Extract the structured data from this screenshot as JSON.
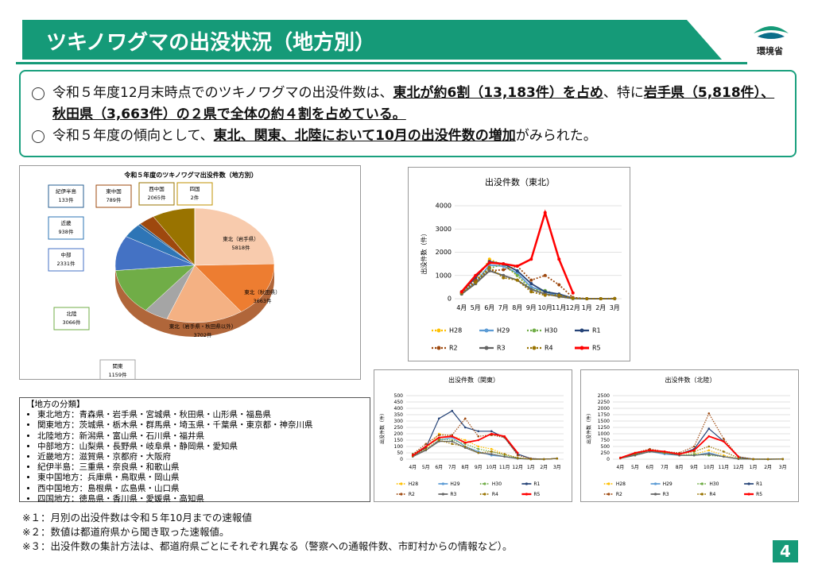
{
  "header": {
    "title": "ツキノワグマの出没状況（地方別）",
    "logo": "環境省"
  },
  "bullets": [
    {
      "segments": [
        {
          "text": "令和５年度12月末時点でのツキノワグマの出没件数は、",
          "bold": false
        },
        {
          "text": "東北が約6割（13,183件）を占め",
          "bold": true
        },
        {
          "text": "、特に",
          "bold": false
        },
        {
          "text": "岩手県（5,818件）、秋田県（3,663件）の２県で全体の約４割を占めている。",
          "bold": true
        }
      ]
    },
    {
      "segments": [
        {
          "text": "令和５年度の傾向として、",
          "bold": false
        },
        {
          "text": "東北、関東、北陸において10月の出没件数の増加",
          "bold": true
        },
        {
          "text": "がみられた。",
          "bold": false
        }
      ]
    }
  ],
  "chart_data": [
    {
      "type": "pie",
      "title": "令和５年度のツキノワグマ出没件数（地方別）",
      "categories": [
        "東北（岩手県）",
        "東北（秋田県）",
        "東北（岩手県・秋田県以外）",
        "関東",
        "北陸",
        "中部",
        "近畿",
        "紀伊半島",
        "東中国",
        "西中国",
        "四国"
      ],
      "values": [
        5818,
        3663,
        3702,
        1159,
        3066,
        2331,
        938,
        133,
        789,
        2065,
        2
      ],
      "value_labels": [
        "5818件",
        "3663件",
        "3702件",
        "1159件",
        "3066件",
        "2331件",
        "938件",
        "133件",
        "789件",
        "2065件",
        "2件"
      ],
      "colors": [
        "#f8cbad",
        "#ed7d31",
        "#f4b183",
        "#a5a5a5",
        "#70ad47",
        "#4472c4",
        "#2e75b6",
        "#255e91",
        "#9e480e",
        "#997300",
        "#bf9000"
      ]
    },
    {
      "type": "line",
      "title": "出没件数（東北）",
      "ylabel": "出没件数（件）",
      "legend": "bottom",
      "categories": [
        "4月",
        "5月",
        "6月",
        "7月",
        "8月",
        "9月",
        "10月",
        "11月",
        "12月",
        "1月",
        "2月",
        "3月"
      ],
      "ylim": [
        0,
        4000
      ],
      "yticks": [
        0,
        1000,
        2000,
        3000,
        4000
      ],
      "grid": true,
      "series": [
        {
          "name": "H28",
          "color": "#ffc000",
          "style": "dotted",
          "values": [
            250,
            750,
            1700,
            1450,
            1000,
            400,
            250,
            80,
            10,
            0,
            0,
            5
          ]
        },
        {
          "name": "H29",
          "color": "#5b9bd5",
          "style": "solid",
          "values": [
            250,
            700,
            1450,
            1400,
            1100,
            500,
            300,
            100,
            10,
            0,
            0,
            5
          ]
        },
        {
          "name": "H30",
          "color": "#70ad47",
          "style": "dotted",
          "values": [
            200,
            650,
            1300,
            1500,
            1000,
            400,
            350,
            150,
            10,
            0,
            0,
            5
          ]
        },
        {
          "name": "R1",
          "color": "#264478",
          "style": "solid",
          "values": [
            300,
            900,
            1600,
            1500,
            1200,
            650,
            300,
            200,
            20,
            0,
            0,
            5
          ]
        },
        {
          "name": "R2",
          "color": "#9e480e",
          "style": "dotted",
          "values": [
            250,
            800,
            1200,
            1250,
            1400,
            800,
            1000,
            600,
            50,
            0,
            0,
            10
          ]
        },
        {
          "name": "R3",
          "color": "#636363",
          "style": "solid",
          "values": [
            200,
            650,
            1200,
            1000,
            800,
            400,
            200,
            100,
            10,
            0,
            0,
            5
          ]
        },
        {
          "name": "R4",
          "color": "#997300",
          "style": "dotted",
          "values": [
            250,
            700,
            1350,
            900,
            800,
            300,
            150,
            150,
            20,
            0,
            0,
            5
          ]
        },
        {
          "name": "R5",
          "color": "#ff0000",
          "style": "solid",
          "values": [
            300,
            1000,
            1550,
            1500,
            1400,
            1700,
            3700,
            1700,
            250,
            null,
            null,
            null
          ]
        }
      ]
    },
    {
      "type": "line",
      "title": "出没件数（関東）",
      "ylabel": "出没件数（件）",
      "legend": "bottom",
      "categories": [
        "4月",
        "5月",
        "6月",
        "7月",
        "8月",
        "9月",
        "10月",
        "11月",
        "12月",
        "1月",
        "2月",
        "3月"
      ],
      "ylim": [
        0,
        500
      ],
      "yticks": [
        0,
        50,
        100,
        150,
        200,
        250,
        300,
        350,
        400,
        450,
        500
      ],
      "grid": true,
      "series": [
        {
          "name": "H28",
          "color": "#ffc000",
          "style": "dotted",
          "values": [
            30,
            80,
            200,
            180,
            150,
            100,
            80,
            40,
            10,
            0,
            0,
            5
          ]
        },
        {
          "name": "H29",
          "color": "#5b9bd5",
          "style": "solid",
          "values": [
            30,
            70,
            150,
            170,
            100,
            60,
            30,
            20,
            5,
            0,
            0,
            5
          ]
        },
        {
          "name": "H30",
          "color": "#70ad47",
          "style": "dotted",
          "values": [
            40,
            100,
            160,
            150,
            120,
            80,
            60,
            30,
            10,
            0,
            0,
            5
          ]
        },
        {
          "name": "R1",
          "color": "#264478",
          "style": "solid",
          "values": [
            30,
            90,
            320,
            380,
            250,
            220,
            220,
            170,
            40,
            5,
            0,
            5
          ]
        },
        {
          "name": "R2",
          "color": "#9e480e",
          "style": "dotted",
          "values": [
            40,
            120,
            190,
            190,
            320,
            180,
            190,
            170,
            30,
            5,
            0,
            5
          ]
        },
        {
          "name": "R3",
          "color": "#636363",
          "style": "solid",
          "values": [
            20,
            70,
            140,
            140,
            90,
            50,
            40,
            20,
            5,
            0,
            0,
            5
          ]
        },
        {
          "name": "R4",
          "color": "#997300",
          "style": "dotted",
          "values": [
            25,
            80,
            150,
            120,
            100,
            50,
            60,
            40,
            10,
            0,
            0,
            5
          ]
        },
        {
          "name": "R5",
          "color": "#ff0000",
          "style": "solid",
          "values": [
            30,
            100,
            170,
            180,
            130,
            150,
            200,
            180,
            50,
            null,
            null,
            null
          ]
        }
      ]
    },
    {
      "type": "line",
      "title": "出没件数（北陸）",
      "ylabel": "出没件数（件）",
      "legend": "bottom",
      "categories": [
        "4月",
        "5月",
        "6月",
        "7月",
        "8月",
        "9月",
        "10月",
        "11月",
        "12月",
        "1月",
        "2月",
        "3月"
      ],
      "ylim": [
        0,
        2500
      ],
      "yticks": [
        0,
        250,
        500,
        750,
        1000,
        1250,
        1500,
        1750,
        2000,
        2250,
        2500
      ],
      "grid": true,
      "series": [
        {
          "name": "H28",
          "color": "#ffc000",
          "style": "dotted",
          "values": [
            50,
            200,
            350,
            250,
            150,
            200,
            350,
            150,
            20,
            0,
            0,
            5
          ]
        },
        {
          "name": "H29",
          "color": "#5b9bd5",
          "style": "solid",
          "values": [
            40,
            150,
            300,
            200,
            150,
            150,
            250,
            100,
            20,
            0,
            0,
            5
          ]
        },
        {
          "name": "H30",
          "color": "#70ad47",
          "style": "dotted",
          "values": [
            40,
            180,
            300,
            250,
            150,
            200,
            150,
            100,
            10,
            0,
            0,
            5
          ]
        },
        {
          "name": "R1",
          "color": "#264478",
          "style": "solid",
          "values": [
            50,
            200,
            350,
            300,
            200,
            400,
            1200,
            700,
            80,
            5,
            0,
            5
          ]
        },
        {
          "name": "R2",
          "color": "#9e480e",
          "style": "dotted",
          "values": [
            60,
            250,
            400,
            300,
            250,
            500,
            1800,
            800,
            100,
            5,
            0,
            5
          ]
        },
        {
          "name": "R3",
          "color": "#636363",
          "style": "solid",
          "values": [
            30,
            150,
            300,
            250,
            150,
            150,
            200,
            100,
            10,
            0,
            0,
            5
          ]
        },
        {
          "name": "R4",
          "color": "#997300",
          "style": "dotted",
          "values": [
            40,
            200,
            350,
            250,
            200,
            300,
            500,
            300,
            50,
            0,
            0,
            5
          ]
        },
        {
          "name": "R5",
          "color": "#ff0000",
          "style": "solid",
          "values": [
            50,
            250,
            350,
            300,
            200,
            350,
            900,
            700,
            100,
            null,
            null,
            null
          ]
        }
      ]
    }
  ],
  "classification": {
    "title": "【地方の分類】",
    "items": [
      "東北地方：青森県・岩手県・宮城県・秋田県・山形県・福島県",
      "関東地方：茨城県・栃木県・群馬県・埼玉県・千葉県・東京都・神奈川県",
      "北陸地方：新潟県・富山県・石川県・福井県",
      "中部地方：山梨県・長野県・岐阜県・静岡県・愛知県",
      "近畿地方：滋賀県・京都府・大阪府",
      "紀伊半島：三重県・奈良県・和歌山県",
      "東中国地方：兵庫県・鳥取県・岡山県",
      "西中国地方：島根県・広島県・山口県",
      "四国地方：徳島県・香川県・愛媛県・高知県"
    ]
  },
  "notes": [
    "※１：月別の出没件数は令和５年10月までの速報値",
    "※２：数値は都道府県から聞き取った速報値。",
    "※３：出没件数の集計方法は、都道府県ごとにそれぞれ異なる（警察への通報件数、市町村からの情報など）。"
  ],
  "page_number": "4"
}
